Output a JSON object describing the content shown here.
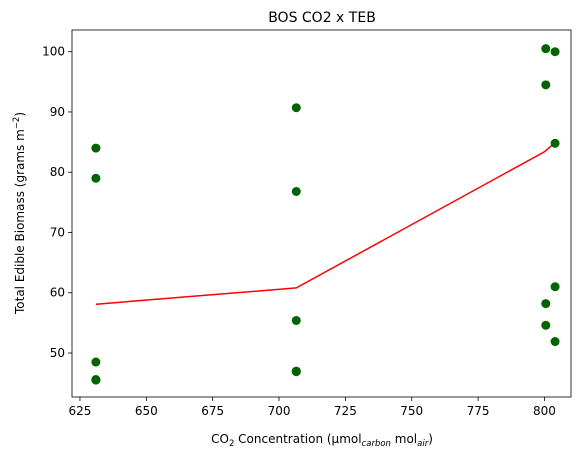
{
  "chart_data": {
    "type": "scatter",
    "title": "BOS CO2 x TEB",
    "xlabel": {
      "prefix": "CO",
      "prefix_sub": "2",
      "middle": " Concentration (µmol",
      "middle_sub": "carbon",
      "suffix": " mol",
      "suffix_sub": "air",
      "close": ")"
    },
    "ylabel": {
      "prefix": "Total Edible Biomass (grams m",
      "sup": "−2",
      "close": ")"
    },
    "xlim": [
      622,
      810
    ],
    "ylim": [
      42.7,
      103.6
    ],
    "xticks": [
      625,
      650,
      675,
      700,
      725,
      750,
      775,
      800
    ],
    "yticks": [
      50,
      60,
      70,
      80,
      90,
      100
    ],
    "grid": false,
    "series": [
      {
        "kind": "scatter",
        "color": "#006400",
        "points": [
          [
            631,
            84.0
          ],
          [
            631,
            79.0
          ],
          [
            631,
            48.5
          ],
          [
            631,
            45.6
          ],
          [
            631,
            45.5
          ],
          [
            706.5,
            90.7
          ],
          [
            706.5,
            76.8
          ],
          [
            706.5,
            55.4
          ],
          [
            706.5,
            47.0
          ],
          [
            706.5,
            46.9
          ],
          [
            800.5,
            100.5
          ],
          [
            800.5,
            94.5
          ],
          [
            800.5,
            58.2
          ],
          [
            800.5,
            54.6
          ],
          [
            804,
            100.0
          ],
          [
            804,
            84.8
          ],
          [
            804,
            61.0
          ],
          [
            804,
            51.9
          ]
        ]
      },
      {
        "kind": "line",
        "color": "#ff0000",
        "points": [
          [
            631,
            58.1
          ],
          [
            706.5,
            60.8
          ],
          [
            800,
            83.4
          ],
          [
            804,
            84.9
          ]
        ]
      }
    ]
  }
}
